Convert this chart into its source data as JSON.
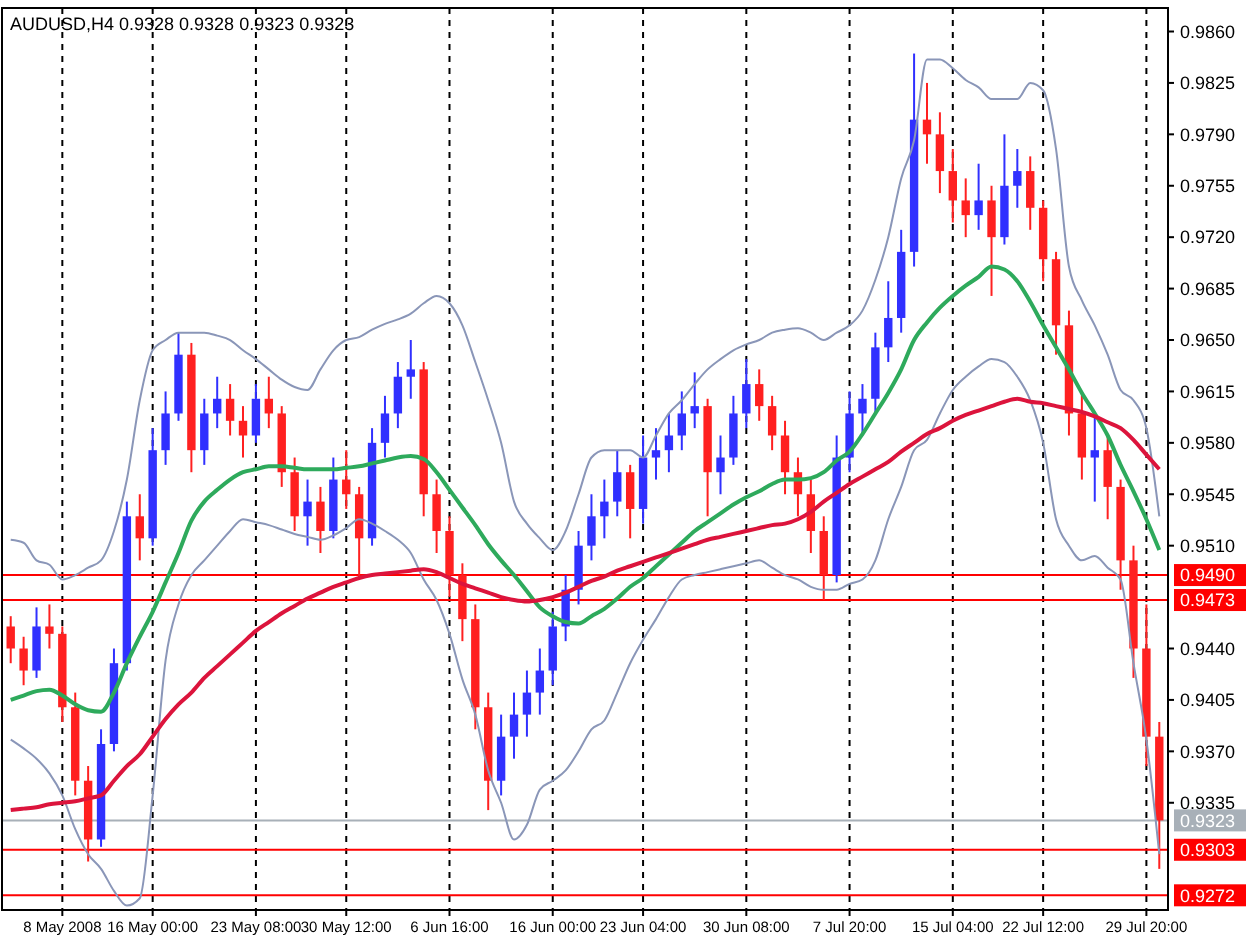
{
  "chart_data": {
    "type": "candlestick",
    "title": "AUDUSD,H4  0.9328 0.9328 0.9323 0.9323",
    "categories": [
      null,
      null,
      null,
      null,
      "8 May 2008",
      null,
      null,
      null,
      null,
      null,
      null,
      "16 May 00:00",
      null,
      null,
      null,
      null,
      null,
      null,
      null,
      "23 May 08:00",
      null,
      null,
      null,
      null,
      null,
      null,
      "30 May 12:00",
      null,
      null,
      null,
      null,
      null,
      null,
      null,
      "6 Jun 16:00",
      null,
      null,
      null,
      null,
      null,
      null,
      null,
      "16 Jun 00:00",
      null,
      null,
      null,
      null,
      null,
      null,
      "23 Jun 04:00",
      null,
      null,
      null,
      null,
      null,
      null,
      null,
      "30 Jun 08:00",
      null,
      null,
      null,
      null,
      null,
      null,
      null,
      "7 Jul 20:00",
      null,
      null,
      null,
      null,
      null,
      null,
      null,
      "15 Jul 04:00",
      null,
      null,
      null,
      null,
      null,
      null,
      "22 Jul 12:00",
      null,
      null,
      null,
      null,
      null,
      null,
      null,
      "29 Jul 20:00",
      null
    ],
    "ohlc": [
      [
        0.9455,
        0.9462,
        0.943,
        0.944
      ],
      [
        0.944,
        0.9448,
        0.9415,
        0.9425
      ],
      [
        0.9425,
        0.9468,
        0.942,
        0.9455
      ],
      [
        0.9455,
        0.947,
        0.944,
        0.945
      ],
      [
        0.945,
        0.9455,
        0.939,
        0.94
      ],
      [
        0.94,
        0.941,
        0.934,
        0.935
      ],
      [
        0.935,
        0.936,
        0.9295,
        0.931
      ],
      [
        0.931,
        0.9385,
        0.9305,
        0.9375
      ],
      [
        0.9375,
        0.944,
        0.937,
        0.943
      ],
      [
        0.943,
        0.954,
        0.9425,
        0.953
      ],
      [
        0.953,
        0.9545,
        0.95,
        0.9515
      ],
      [
        0.9515,
        0.959,
        0.951,
        0.9575
      ],
      [
        0.9575,
        0.9615,
        0.9565,
        0.96
      ],
      [
        0.96,
        0.9655,
        0.9595,
        0.964
      ],
      [
        0.964,
        0.9648,
        0.956,
        0.9575
      ],
      [
        0.9575,
        0.961,
        0.9565,
        0.96
      ],
      [
        0.96,
        0.9625,
        0.959,
        0.961
      ],
      [
        0.961,
        0.962,
        0.9585,
        0.9595
      ],
      [
        0.9595,
        0.9605,
        0.957,
        0.9585
      ],
      [
        0.9585,
        0.962,
        0.958,
        0.961
      ],
      [
        0.961,
        0.9625,
        0.959,
        0.96
      ],
      [
        0.96,
        0.9605,
        0.955,
        0.956
      ],
      [
        0.956,
        0.957,
        0.952,
        0.953
      ],
      [
        0.953,
        0.9555,
        0.951,
        0.954
      ],
      [
        0.954,
        0.955,
        0.9505,
        0.952
      ],
      [
        0.952,
        0.957,
        0.9515,
        0.9555
      ],
      [
        0.9555,
        0.9575,
        0.9535,
        0.9545
      ],
      [
        0.9545,
        0.955,
        0.9488,
        0.9515
      ],
      [
        0.9515,
        0.959,
        0.951,
        0.958
      ],
      [
        0.958,
        0.9612,
        0.957,
        0.96
      ],
      [
        0.96,
        0.9635,
        0.959,
        0.9625
      ],
      [
        0.9625,
        0.965,
        0.961,
        0.963
      ],
      [
        0.963,
        0.9635,
        0.953,
        0.9545
      ],
      [
        0.9545,
        0.9555,
        0.9505,
        0.952
      ],
      [
        0.952,
        0.953,
        0.9475,
        0.949
      ],
      [
        0.949,
        0.9498,
        0.9445,
        0.946
      ],
      [
        0.946,
        0.947,
        0.9385,
        0.94
      ],
      [
        0.94,
        0.941,
        0.933,
        0.935
      ],
      [
        0.935,
        0.9395,
        0.934,
        0.938
      ],
      [
        0.938,
        0.941,
        0.9365,
        0.9395
      ],
      [
        0.9395,
        0.9425,
        0.938,
        0.941
      ],
      [
        0.941,
        0.944,
        0.9395,
        0.9425
      ],
      [
        0.9425,
        0.9465,
        0.9415,
        0.9455
      ],
      [
        0.9455,
        0.949,
        0.9445,
        0.948
      ],
      [
        0.948,
        0.952,
        0.947,
        0.951
      ],
      [
        0.951,
        0.9545,
        0.95,
        0.953
      ],
      [
        0.953,
        0.9555,
        0.9515,
        0.954
      ],
      [
        0.954,
        0.9575,
        0.953,
        0.956
      ],
      [
        0.956,
        0.9565,
        0.9515,
        0.9535
      ],
      [
        0.9535,
        0.9585,
        0.9525,
        0.957
      ],
      [
        0.957,
        0.959,
        0.9555,
        0.9575
      ],
      [
        0.9575,
        0.96,
        0.956,
        0.9585
      ],
      [
        0.9585,
        0.9615,
        0.9575,
        0.96
      ],
      [
        0.96,
        0.9628,
        0.959,
        0.9605
      ],
      [
        0.9605,
        0.961,
        0.953,
        0.956
      ],
      [
        0.956,
        0.9585,
        0.9545,
        0.957
      ],
      [
        0.957,
        0.9612,
        0.9565,
        0.96
      ],
      [
        0.96,
        0.9637,
        0.959,
        0.962
      ],
      [
        0.962,
        0.963,
        0.9595,
        0.9605
      ],
      [
        0.9605,
        0.9612,
        0.9575,
        0.9585
      ],
      [
        0.9585,
        0.9595,
        0.9545,
        0.956
      ],
      [
        0.956,
        0.957,
        0.953,
        0.9545
      ],
      [
        0.9545,
        0.9555,
        0.9505,
        0.952
      ],
      [
        0.952,
        0.953,
        0.9473,
        0.949
      ],
      [
        0.949,
        0.9585,
        0.9485,
        0.957
      ],
      [
        0.957,
        0.9615,
        0.956,
        0.96
      ],
      [
        0.96,
        0.962,
        0.9585,
        0.961
      ],
      [
        0.961,
        0.9655,
        0.96,
        0.9645
      ],
      [
        0.9645,
        0.969,
        0.9635,
        0.9665
      ],
      [
        0.9665,
        0.9725,
        0.9655,
        0.971
      ],
      [
        0.971,
        0.9845,
        0.97,
        0.98
      ],
      [
        0.98,
        0.9825,
        0.977,
        0.979
      ],
      [
        0.979,
        0.9805,
        0.975,
        0.9765
      ],
      [
        0.9765,
        0.978,
        0.973,
        0.9745
      ],
      [
        0.9745,
        0.976,
        0.972,
        0.9735
      ],
      [
        0.9735,
        0.977,
        0.9725,
        0.9745
      ],
      [
        0.9745,
        0.9755,
        0.968,
        0.972
      ],
      [
        0.972,
        0.979,
        0.9715,
        0.9755
      ],
      [
        0.9755,
        0.978,
        0.974,
        0.9765
      ],
      [
        0.9765,
        0.9775,
        0.9725,
        0.974
      ],
      [
        0.974,
        0.9745,
        0.969,
        0.9705
      ],
      [
        0.9705,
        0.971,
        0.964,
        0.966
      ],
      [
        0.966,
        0.967,
        0.9585,
        0.96
      ],
      [
        0.96,
        0.9615,
        0.9555,
        0.957
      ],
      [
        0.957,
        0.96,
        0.954,
        0.9575
      ],
      [
        0.9575,
        0.9585,
        0.9528,
        0.955
      ],
      [
        0.955,
        0.9555,
        0.948,
        0.95
      ],
      [
        0.95,
        0.951,
        0.942,
        0.944
      ],
      [
        0.944,
        0.947,
        0.936,
        0.938
      ],
      [
        0.938,
        0.939,
        0.929,
        0.9323
      ]
    ],
    "colors": [
      "#ff2020",
      "#ff2020",
      "#3030ff",
      "#ff2020",
      "#ff2020",
      "#ff2020",
      "#ff2020",
      "#3030ff",
      "#3030ff",
      "#3030ff",
      "#ff2020",
      "#3030ff",
      "#3030ff",
      "#3030ff",
      "#ff2020",
      "#3030ff",
      "#3030ff",
      "#ff2020",
      "#ff2020",
      "#3030ff",
      "#ff2020",
      "#ff2020",
      "#ff2020",
      "#3030ff",
      "#ff2020",
      "#3030ff",
      "#ff2020",
      "#ff2020",
      "#3030ff",
      "#3030ff",
      "#3030ff",
      "#3030ff",
      "#ff2020",
      "#ff2020",
      "#ff2020",
      "#ff2020",
      "#ff2020",
      "#ff2020",
      "#3030ff",
      "#3030ff",
      "#3030ff",
      "#3030ff",
      "#3030ff",
      "#3030ff",
      "#3030ff",
      "#3030ff",
      "#3030ff",
      "#3030ff",
      "#ff2020",
      "#3030ff",
      "#3030ff",
      "#3030ff",
      "#3030ff",
      "#3030ff",
      "#ff2020",
      "#3030ff",
      "#3030ff",
      "#3030ff",
      "#ff2020",
      "#ff2020",
      "#ff2020",
      "#ff2020",
      "#ff2020",
      "#ff2020",
      "#3030ff",
      "#3030ff",
      "#3030ff",
      "#3030ff",
      "#3030ff",
      "#3030ff",
      "#3030ff",
      "#ff2020",
      "#ff2020",
      "#ff2020",
      "#ff2020",
      "#3030ff",
      "#ff2020",
      "#3030ff",
      "#3030ff",
      "#ff2020",
      "#ff2020",
      "#ff2020",
      "#ff2020",
      "#ff2020",
      "#3030ff",
      "#ff2020",
      "#ff2020",
      "#ff2020",
      "#ff2020",
      "#ff2020"
    ],
    "series": [
      {
        "type": "line",
        "color": "#8a96b8",
        "values": [
          0.9514,
          0.9512,
          0.95,
          0.9497,
          0.9487,
          0.949,
          0.9495,
          0.95,
          0.952,
          0.9555,
          0.9609,
          0.9643,
          0.965,
          0.9655,
          0.9655,
          0.9655,
          0.9653,
          0.965,
          0.9643,
          0.9637,
          0.963,
          0.9623,
          0.9618,
          0.9616,
          0.963,
          0.9643,
          0.965,
          0.9652,
          0.9657,
          0.9661,
          0.9664,
          0.9668,
          0.9675,
          0.968,
          0.9675,
          0.966,
          0.9635,
          0.9609,
          0.958,
          0.954,
          0.9525,
          0.9515,
          0.9507,
          0.952,
          0.9545,
          0.957,
          0.9575,
          0.9575,
          0.9575,
          0.957,
          0.9585,
          0.96,
          0.9609,
          0.962,
          0.963,
          0.9637,
          0.9643,
          0.9647,
          0.965,
          0.9655,
          0.9657,
          0.9658,
          0.9655,
          0.965,
          0.9655,
          0.966,
          0.967,
          0.9691,
          0.972,
          0.976,
          0.9786,
          0.9841,
          0.9841,
          0.9835,
          0.9827,
          0.9822,
          0.9814,
          0.9814,
          0.9814,
          0.9825,
          0.982,
          0.978,
          0.97,
          0.9677,
          0.966,
          0.964,
          0.9616,
          0.9609,
          0.959,
          0.953
        ]
      },
      {
        "type": "line",
        "color": "#8a96b8",
        "values": [
          0.9378,
          0.9372,
          0.9365,
          0.9355,
          0.934,
          0.9317,
          0.93,
          0.929,
          0.9275,
          0.9265,
          0.927,
          0.934,
          0.9432,
          0.947,
          0.949,
          0.95,
          0.951,
          0.952,
          0.9528,
          0.9526,
          0.9524,
          0.9521,
          0.9518,
          0.9516,
          0.9514,
          0.9517,
          0.9522,
          0.9528,
          0.9525,
          0.952,
          0.9514,
          0.9505,
          0.9487,
          0.9473,
          0.945,
          0.9419,
          0.9395,
          0.9357,
          0.9335,
          0.931,
          0.932,
          0.9344,
          0.935,
          0.9357,
          0.937,
          0.9385,
          0.9391,
          0.941,
          0.943,
          0.9446,
          0.946,
          0.9475,
          0.9487,
          0.949,
          0.9492,
          0.9494,
          0.9496,
          0.9498,
          0.95,
          0.9495,
          0.949,
          0.9487,
          0.9482,
          0.948,
          0.948,
          0.9484,
          0.9487,
          0.95,
          0.9528,
          0.955,
          0.9575,
          0.9582,
          0.96,
          0.9616,
          0.9625,
          0.9632,
          0.9637,
          0.9635,
          0.9625,
          0.9609,
          0.958,
          0.9528,
          0.951,
          0.95,
          0.9503,
          0.9495,
          0.9487,
          0.943,
          0.9378,
          0.93
        ]
      },
      {
        "type": "line",
        "color": "#2eaa5c",
        "values": [
          0.9405,
          0.9408,
          0.9411,
          0.9412,
          0.9408,
          0.9402,
          0.9398,
          0.9397,
          0.941,
          0.943,
          0.9448,
          0.9465,
          0.9485,
          0.9505,
          0.9527,
          0.954,
          0.9548,
          0.9555,
          0.956,
          0.9562,
          0.9564,
          0.9564,
          0.9563,
          0.9562,
          0.9562,
          0.9562,
          0.9563,
          0.9564,
          0.9566,
          0.9568,
          0.957,
          0.9571,
          0.9569,
          0.956,
          0.9548,
          0.9536,
          0.9524,
          0.9511,
          0.95,
          0.949,
          0.9479,
          0.9468,
          0.9462,
          0.9458,
          0.9457,
          0.9462,
          0.9467,
          0.9474,
          0.9482,
          0.9488,
          0.9496,
          0.9504,
          0.9512,
          0.952,
          0.9526,
          0.9532,
          0.9538,
          0.9543,
          0.9547,
          0.9552,
          0.9555,
          0.9555,
          0.9556,
          0.956,
          0.9568,
          0.9574,
          0.9586,
          0.96,
          0.9614,
          0.963,
          0.965,
          0.9662,
          0.9672,
          0.968,
          0.9687,
          0.9693,
          0.97,
          0.9698,
          0.969,
          0.9676,
          0.966,
          0.9645,
          0.963,
          0.9614,
          0.96,
          0.9585,
          0.9565,
          0.9547,
          0.9528,
          0.9507
        ]
      },
      {
        "type": "line",
        "color": "#dc143c",
        "values": [
          0.933,
          0.9331,
          0.9332,
          0.9334,
          0.9335,
          0.9336,
          0.9338,
          0.934,
          0.935,
          0.936,
          0.9368,
          0.938,
          0.9392,
          0.9402,
          0.941,
          0.942,
          0.9428,
          0.9436,
          0.9444,
          0.9452,
          0.9458,
          0.9464,
          0.9469,
          0.9474,
          0.9478,
          0.9482,
          0.9485,
          0.9488,
          0.949,
          0.9491,
          0.9492,
          0.9493,
          0.9494,
          0.9492,
          0.9488,
          0.9484,
          0.9481,
          0.9478,
          0.9475,
          0.9473,
          0.9472,
          0.9473,
          0.9475,
          0.9478,
          0.9482,
          0.9486,
          0.9489,
          0.9493,
          0.9496,
          0.9499,
          0.9502,
          0.9505,
          0.9508,
          0.9511,
          0.9514,
          0.9516,
          0.9518,
          0.952,
          0.9522,
          0.9524,
          0.9525,
          0.9528,
          0.9533,
          0.954,
          0.9546,
          0.9552,
          0.9557,
          0.9562,
          0.9567,
          0.9574,
          0.958,
          0.9586,
          0.959,
          0.9595,
          0.9599,
          0.9602,
          0.9605,
          0.9608,
          0.961,
          0.9608,
          0.9607,
          0.9605,
          0.9603,
          0.9601,
          0.9598,
          0.9594,
          0.959,
          0.9582,
          0.9572,
          0.9562
        ]
      }
    ],
    "ylim": [
      0.9262,
      0.9876
    ],
    "yticks": [
      {
        "value": 0.986,
        "label": "0.9860"
      },
      {
        "value": 0.9825,
        "label": "0.9825"
      },
      {
        "value": 0.979,
        "label": "0.9790"
      },
      {
        "value": 0.9755,
        "label": "0.9755"
      },
      {
        "value": 0.972,
        "label": "0.9720"
      },
      {
        "value": 0.9685,
        "label": "0.9685"
      },
      {
        "value": 0.965,
        "label": "0.9650"
      },
      {
        "value": 0.9615,
        "label": "0.9615"
      },
      {
        "value": 0.958,
        "label": "0.9580"
      },
      {
        "value": 0.9545,
        "label": "0.9545"
      },
      {
        "value": 0.951,
        "label": "0.9510"
      },
      {
        "value": 0.944,
        "label": "0.9440"
      },
      {
        "value": 0.9405,
        "label": "0.9405"
      },
      {
        "value": 0.937,
        "label": "0.9370"
      },
      {
        "value": 0.9335,
        "label": "0.9335"
      }
    ],
    "ref_lines": [
      {
        "axis": "y",
        "value": 0.949,
        "label": "0.9490",
        "color": "#ff0000"
      },
      {
        "axis": "y",
        "value": 0.9473,
        "label": "0.9473",
        "color": "#ff0000"
      },
      {
        "axis": "y",
        "value": 0.9323,
        "label": "0.9323",
        "color": "#a8b0b8"
      },
      {
        "axis": "y",
        "value": 0.9303,
        "label": "0.9303",
        "color": "#ff0000"
      },
      {
        "axis": "y",
        "value": 0.9272,
        "label": "0.9272",
        "color": "#ff0000"
      }
    ],
    "grid": "x"
  }
}
